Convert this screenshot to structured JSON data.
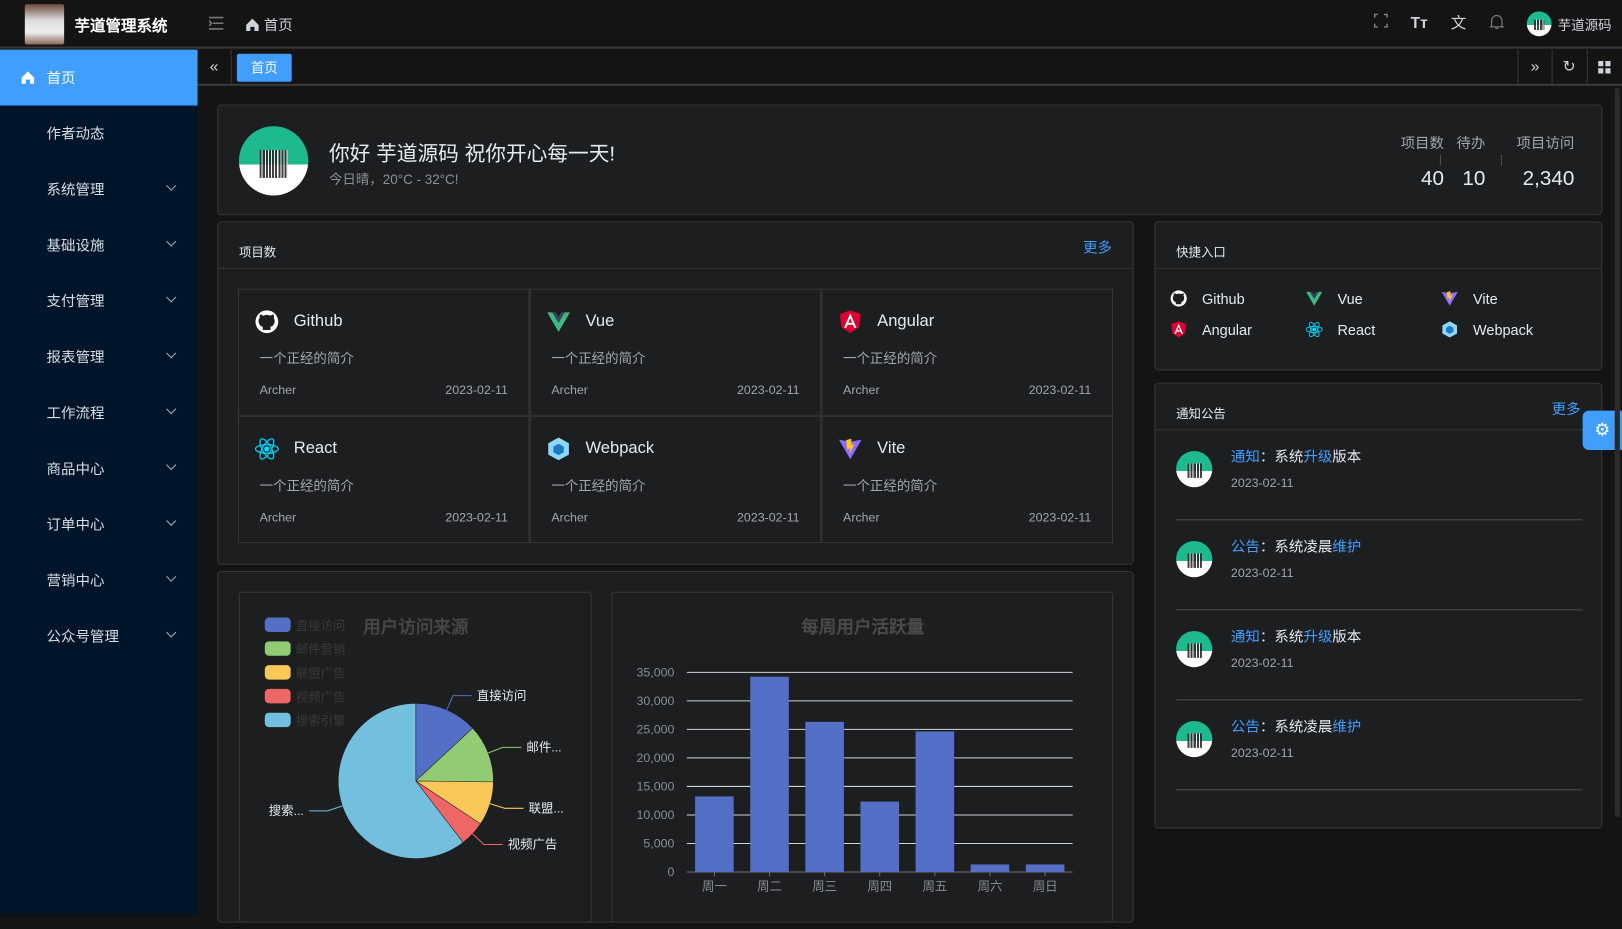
{
  "header": {
    "title": "芋道管理系统",
    "breadcrumb": "首页",
    "username": "芋道源码",
    "icons": [
      "menu-icon",
      "home-icon",
      "fullscreen-icon",
      "font-size-icon",
      "translate-icon",
      "bell-icon"
    ]
  },
  "sidebar": {
    "items": [
      {
        "label": "首页",
        "active": true
      },
      {
        "label": "作者动态"
      },
      {
        "label": "系统管理",
        "expandable": true
      },
      {
        "label": "基础设施",
        "expandable": true
      },
      {
        "label": "支付管理",
        "expandable": true
      },
      {
        "label": "报表管理",
        "expandable": true
      },
      {
        "label": "工作流程",
        "expandable": true
      },
      {
        "label": "商品中心",
        "expandable": true
      },
      {
        "label": "订单中心",
        "expandable": true
      },
      {
        "label": "营销中心",
        "expandable": true
      },
      {
        "label": "公众号管理",
        "expandable": true
      }
    ]
  },
  "tabs": [
    {
      "label": "首页",
      "active": true
    }
  ],
  "welcome": {
    "greeting": "你好 芋道源码 祝你开心每一天!",
    "weather": "今日晴，20°C - 32°C!",
    "stats": [
      {
        "label": "项目数",
        "value": "40"
      },
      {
        "label": "待办",
        "value": "10"
      },
      {
        "label": "项目访问",
        "value": "2,340"
      }
    ]
  },
  "projects": {
    "title": "项目数",
    "more": "更多",
    "items": [
      {
        "name": "Github",
        "desc": "一个正经的简介",
        "author": "Archer",
        "date": "2023-02-11",
        "icon": "github-icon"
      },
      {
        "name": "Vue",
        "desc": "一个正经的简介",
        "author": "Archer",
        "date": "2023-02-11",
        "icon": "vue-icon"
      },
      {
        "name": "Angular",
        "desc": "一个正经的简介",
        "author": "Archer",
        "date": "2023-02-11",
        "icon": "angular-icon"
      },
      {
        "name": "React",
        "desc": "一个正经的简介",
        "author": "Archer",
        "date": "2023-02-11",
        "icon": "react-icon"
      },
      {
        "name": "Webpack",
        "desc": "一个正经的简介",
        "author": "Archer",
        "date": "2023-02-11",
        "icon": "webpack-icon"
      },
      {
        "name": "Vite",
        "desc": "一个正经的简介",
        "author": "Archer",
        "date": "2023-02-11",
        "icon": "vite-icon"
      }
    ]
  },
  "quick": {
    "title": "快捷入口",
    "items": [
      {
        "name": "Github",
        "icon": "github-icon"
      },
      {
        "name": "Vue",
        "icon": "vue-icon"
      },
      {
        "name": "Vite",
        "icon": "vite-icon"
      },
      {
        "name": "Angular",
        "icon": "angular-icon"
      },
      {
        "name": "React",
        "icon": "react-icon"
      },
      {
        "name": "Webpack",
        "icon": "webpack-icon"
      }
    ]
  },
  "notices": {
    "title": "通知公告",
    "more": "更多",
    "items": [
      {
        "type": "通知",
        "sep": "：",
        "pre": "系统",
        "hl": "升级",
        "post": "版本",
        "date": "2023-02-11"
      },
      {
        "type": "公告",
        "sep": "：",
        "pre": "系统凌晨",
        "hl": "维护",
        "post": "",
        "date": "2023-02-11"
      },
      {
        "type": "通知",
        "sep": "：",
        "pre": "系统",
        "hl": "升级",
        "post": "版本",
        "date": "2023-02-11"
      },
      {
        "type": "公告",
        "sep": "：",
        "pre": "系统凌晨",
        "hl": "维护",
        "post": "",
        "date": "2023-02-11"
      }
    ]
  },
  "chart_data": [
    {
      "type": "pie",
      "title": "用户访问来源",
      "legend_position": "top-left",
      "categories": [
        "直接访问",
        "邮件营销",
        "联盟广告",
        "视频广告",
        "搜索引擎"
      ],
      "slice_labels": [
        "直接访问",
        "邮件...",
        "联盟...",
        "视频广告",
        "搜索..."
      ],
      "values": [
        335,
        310,
        234,
        135,
        1548
      ],
      "colors": [
        "#5470c6",
        "#91cc75",
        "#fac858",
        "#ee6666",
        "#73c0de"
      ]
    },
    {
      "type": "bar",
      "title": "每周用户活跃量",
      "categories": [
        "周一",
        "周二",
        "周三",
        "周四",
        "周五",
        "周六",
        "周日"
      ],
      "values": [
        13253,
        34235,
        26321,
        12340,
        24643,
        1322,
        1324
      ],
      "ylim": [
        0,
        35000
      ],
      "yticks": [
        "0",
        "5,000",
        "10,000",
        "15,000",
        "20,000",
        "25,000",
        "30,000",
        "35,000"
      ],
      "grid": true,
      "color": "#5470c6"
    }
  ],
  "colors": {
    "primary": "#409eff",
    "sidebar": "#001529"
  }
}
